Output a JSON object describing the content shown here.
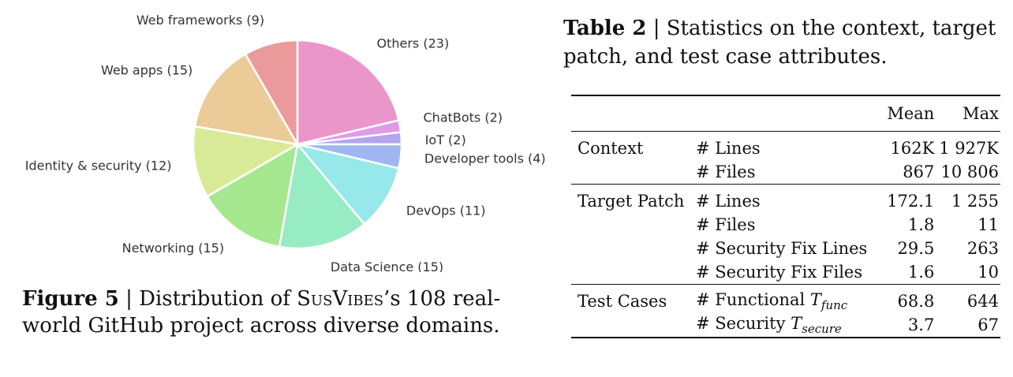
{
  "figure5": {
    "caption_label": "Figure 5",
    "caption_sep": " | Distribution of ",
    "caption_name": "SusVibes",
    "caption_rest": "’s 108 real-world GitHub project across diverse domains.",
    "chart_data": {
      "type": "pie",
      "title": "",
      "start_angle_deg": 90,
      "direction": "clockwise",
      "slices": [
        {
          "label": "Others (23)",
          "value": 23,
          "color": "#EA96CB"
        },
        {
          "label": "ChatBots (2)",
          "value": 2,
          "color": "#E09BE6"
        },
        {
          "label": "IoT (2)",
          "value": 2,
          "color": "#B3A5EE"
        },
        {
          "label": "Developer tools (4)",
          "value": 4,
          "color": "#9EB7F0"
        },
        {
          "label": "DevOps (11)",
          "value": 11,
          "color": "#97E8EA"
        },
        {
          "label": "Data Science (15)",
          "value": 15,
          "color": "#97ECC3"
        },
        {
          "label": "Networking (15)",
          "value": 15,
          "color": "#A5E890"
        },
        {
          "label": "Identity & security (12)",
          "value": 12,
          "color": "#D8EA97"
        },
        {
          "label": "Web apps (15)",
          "value": 15,
          "color": "#EBCB98"
        },
        {
          "label": "Web frameworks (9)",
          "value": 9,
          "color": "#EA9A9A"
        }
      ]
    }
  },
  "table2": {
    "caption_label": "Table 2",
    "caption_text": " | Statistics on the context, target patch, and test case attributes.",
    "columns": [
      "",
      "",
      "Mean",
      "Max"
    ],
    "rows": [
      {
        "group": "Context",
        "attr": "# Lines",
        "mean": "162K",
        "max": "1 927K"
      },
      {
        "group": "",
        "attr": "# Files",
        "mean": "867",
        "max": "10 806"
      },
      {
        "group": "Target Patch",
        "attr": "# Lines",
        "mean": "172.1",
        "max": "1 255"
      },
      {
        "group": "",
        "attr": "# Files",
        "mean": "1.8",
        "max": "11"
      },
      {
        "group": "",
        "attr": "# Security Fix Lines",
        "mean": "29.5",
        "max": "263"
      },
      {
        "group": "",
        "attr": "# Security Fix Files",
        "mean": "1.6",
        "max": "10"
      },
      {
        "group": "Test Cases",
        "attr": "# Functional ",
        "attr_sym": "T",
        "attr_sub": "func",
        "mean": "68.8",
        "max": "644"
      },
      {
        "group": "",
        "attr": "# Security ",
        "attr_sym": "T",
        "attr_sub": "secure",
        "mean": "3.7",
        "max": "67"
      }
    ]
  }
}
